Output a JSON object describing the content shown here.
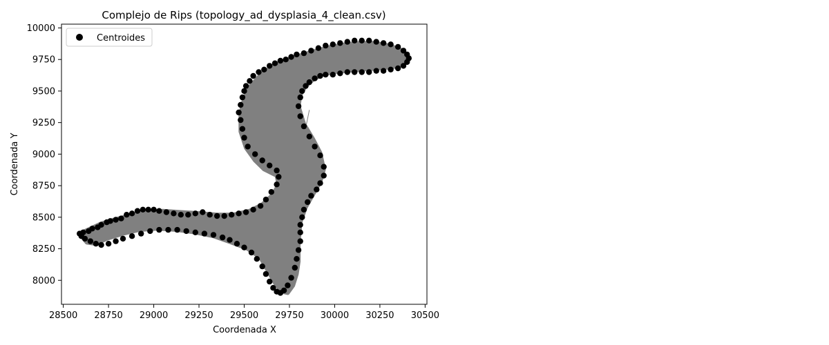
{
  "chart_data": {
    "type": "scatter",
    "title": "Complejo de Rips (topology_ad_dysplasia_4_clean.csv)",
    "xlabel": "Coordenada X",
    "ylabel": "Coordenada Y",
    "xlim": [
      28490,
      30510
    ],
    "ylim": [
      7810,
      10030
    ],
    "xticks": [
      28500,
      28750,
      29000,
      29250,
      29500,
      29750,
      30000,
      30250,
      30500
    ],
    "yticks": [
      8000,
      8250,
      8500,
      8750,
      9000,
      9250,
      9500,
      9750,
      10000
    ],
    "legend": {
      "location": "top-left",
      "entries": [
        "Centroides"
      ]
    },
    "grid": false,
    "colors": {
      "points": "#000000",
      "complex_fill": "#808080"
    },
    "complex_region": {
      "outline_x": [
        28590,
        28650,
        28710,
        28780,
        28860,
        28950,
        29050,
        29150,
        29260,
        29350,
        29440,
        29530,
        29600,
        29660,
        29690,
        29680,
        29610,
        29560,
        29510,
        29480,
        29480,
        29500,
        29530,
        29580,
        29620,
        29660,
        29700,
        29760,
        29830,
        29900,
        29980,
        30060,
        30140,
        30220,
        30300,
        30360,
        30400,
        30410,
        30380,
        30320,
        30240,
        30150,
        30060,
        29990,
        29930,
        29880,
        29840,
        29810,
        29800,
        29830,
        29880,
        29920,
        29940,
        29920,
        29880,
        29840,
        29810,
        29800,
        29800,
        29790,
        29770,
        29740,
        29710,
        29670,
        29630,
        29590,
        29520,
        29430,
        29330,
        29230,
        29130,
        29020,
        28920,
        28830,
        28740,
        28680,
        28630
      ],
      "outline_y": [
        8370,
        8410,
        8450,
        8480,
        8510,
        8540,
        8550,
        8540,
        8530,
        8520,
        8520,
        8550,
        8600,
        8680,
        8760,
        8830,
        8880,
        8950,
        9050,
        9180,
        9320,
        9440,
        9530,
        9610,
        9660,
        9700,
        9730,
        9760,
        9790,
        9820,
        9850,
        9870,
        9880,
        9880,
        9860,
        9830,
        9790,
        9750,
        9710,
        9690,
        9680,
        9670,
        9660,
        9650,
        9630,
        9590,
        9540,
        9470,
        9380,
        9240,
        9120,
        9010,
        8880,
        8780,
        8680,
        8580,
        8460,
        8300,
        8150,
        8050,
        7960,
        7900,
        7910,
        7980,
        8080,
        8180,
        8250,
        8300,
        8350,
        8380,
        8400,
        8410,
        8400,
        8370,
        8330,
        8290,
        8300
      ],
      "bridge_x": [
        29580,
        29720,
        29810,
        29860
      ],
      "bridge_y": [
        8950,
        8850,
        9000,
        9350
      ]
    },
    "series": [
      {
        "name": "Centroides",
        "x": [
          28590,
          28610,
          28640,
          28660,
          28690,
          28710,
          28740,
          28760,
          28790,
          28820,
          28850,
          28880,
          28910,
          28940,
          28970,
          29000,
          29030,
          29070,
          29110,
          29150,
          29190,
          29230,
          29270,
          29310,
          29350,
          29390,
          29430,
          29470,
          29510,
          29550,
          29590,
          29620,
          29650,
          29680,
          29690,
          29680,
          29640,
          29600,
          29560,
          29520,
          29500,
          29490,
          29480,
          29470,
          29480,
          29490,
          29500,
          29510,
          29530,
          29550,
          29580,
          29610,
          29640,
          29670,
          29700,
          29730,
          29760,
          29790,
          29830,
          29870,
          29910,
          29950,
          29990,
          30030,
          30070,
          30110,
          30150,
          30190,
          30230,
          30270,
          30310,
          30350,
          30380,
          30400,
          30410,
          30400,
          30380,
          30350,
          30310,
          30270,
          30230,
          30190,
          30150,
          30110,
          30070,
          30030,
          29990,
          29950,
          29920,
          29890,
          29860,
          29840,
          29820,
          29810,
          29800,
          29810,
          29830,
          29860,
          29890,
          29920,
          29940,
          29940,
          29920,
          29900,
          29870,
          29850,
          29830,
          29820,
          29810,
          29810,
          29810,
          29800,
          29790,
          29780,
          29760,
          29740,
          29720,
          29700,
          29680,
          29660,
          29640,
          29620,
          29600,
          29570,
          29540,
          29500,
          29460,
          29420,
          29380,
          29330,
          29280,
          29230,
          29180,
          29130,
          29080,
          29030,
          28980,
          28930,
          28880,
          28830,
          28790,
          28750,
          28710,
          28680,
          28650,
          28620,
          28600
        ],
        "y": [
          8370,
          8380,
          8390,
          8410,
          8420,
          8440,
          8460,
          8470,
          8480,
          8490,
          8520,
          8530,
          8550,
          8560,
          8560,
          8560,
          8550,
          8540,
          8530,
          8520,
          8520,
          8530,
          8540,
          8520,
          8510,
          8510,
          8520,
          8530,
          8540,
          8560,
          8590,
          8640,
          8700,
          8760,
          8820,
          8870,
          8910,
          8950,
          9000,
          9060,
          9130,
          9200,
          9270,
          9330,
          9390,
          9450,
          9500,
          9540,
          9580,
          9620,
          9650,
          9670,
          9700,
          9720,
          9740,
          9750,
          9770,
          9790,
          9800,
          9820,
          9840,
          9860,
          9870,
          9880,
          9890,
          9900,
          9900,
          9900,
          9890,
          9880,
          9870,
          9850,
          9820,
          9790,
          9760,
          9730,
          9700,
          9680,
          9670,
          9660,
          9660,
          9650,
          9650,
          9650,
          9650,
          9640,
          9630,
          9630,
          9620,
          9600,
          9570,
          9540,
          9500,
          9450,
          9380,
          9300,
          9220,
          9140,
          9060,
          8990,
          8900,
          8830,
          8770,
          8720,
          8670,
          8620,
          8560,
          8500,
          8440,
          8380,
          8310,
          8240,
          8170,
          8100,
          8020,
          7960,
          7920,
          7900,
          7910,
          7940,
          7990,
          8050,
          8110,
          8170,
          8220,
          8260,
          8290,
          8320,
          8340,
          8360,
          8370,
          8380,
          8390,
          8400,
          8400,
          8400,
          8390,
          8370,
          8350,
          8330,
          8310,
          8290,
          8280,
          8290,
          8310,
          8330,
          8350
        ]
      }
    ]
  }
}
